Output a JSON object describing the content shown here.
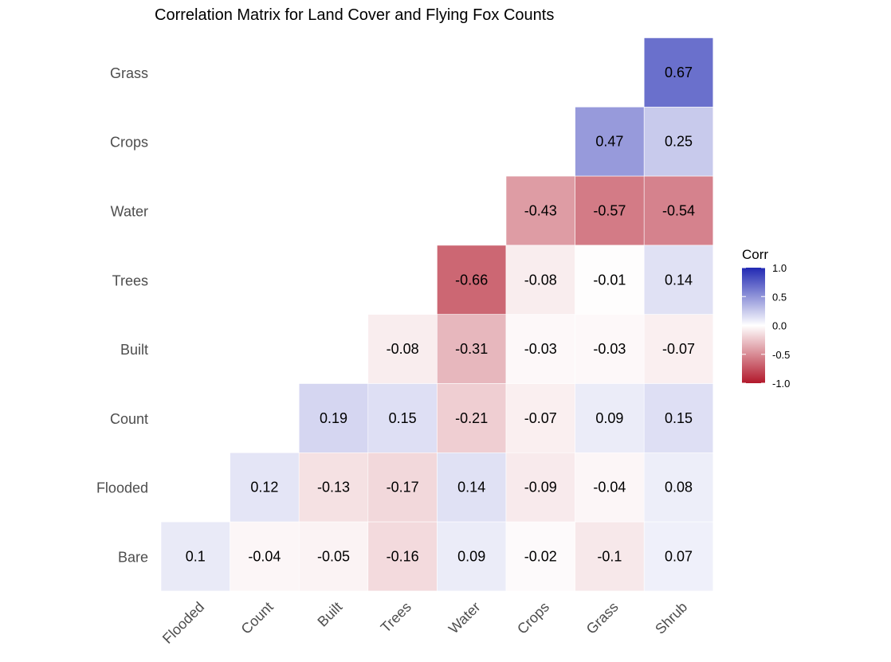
{
  "chart_data": {
    "type": "heatmap",
    "title": "Correlation Matrix for Land Cover and Flying Fox Counts",
    "x_labels": [
      "Flooded",
      "Count",
      "Built",
      "Trees",
      "Water",
      "Crops",
      "Grass",
      "Shrub"
    ],
    "y_labels": [
      "Grass",
      "Crops",
      "Water",
      "Trees",
      "Built",
      "Count",
      "Flooded",
      "Bare"
    ],
    "values": [
      [
        null,
        null,
        null,
        null,
        null,
        null,
        null,
        0.67
      ],
      [
        null,
        null,
        null,
        null,
        null,
        null,
        0.47,
        0.25
      ],
      [
        null,
        null,
        null,
        null,
        null,
        -0.43,
        -0.57,
        -0.54
      ],
      [
        null,
        null,
        null,
        null,
        -0.66,
        -0.08,
        -0.01,
        0.14
      ],
      [
        null,
        null,
        null,
        -0.08,
        -0.31,
        -0.03,
        -0.03,
        -0.07
      ],
      [
        null,
        null,
        0.19,
        0.15,
        -0.21,
        -0.07,
        0.09,
        0.15
      ],
      [
        null,
        0.12,
        -0.13,
        -0.17,
        0.14,
        -0.09,
        -0.04,
        0.08
      ],
      [
        0.1,
        -0.04,
        -0.05,
        -0.16,
        0.09,
        -0.02,
        -0.1,
        0.07
      ]
    ],
    "legend": {
      "title": "Corr",
      "ticks": [
        "1.0",
        "0.5",
        "0.0",
        "-0.5",
        "-1.0"
      ],
      "range": [
        -1,
        1
      ],
      "placement": "right"
    },
    "colors": {
      "low": "#B2182B",
      "mid": "#FFFFFF",
      "high": "#2129B3"
    },
    "grid": false
  }
}
